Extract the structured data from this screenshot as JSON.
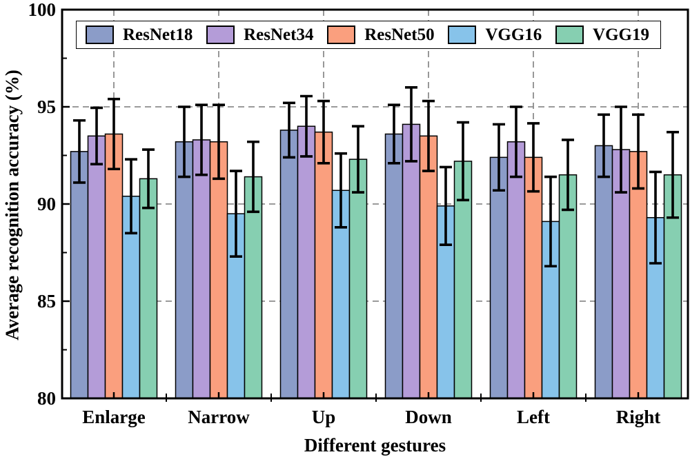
{
  "figure": {
    "y_axis_title": "Average recognition accuracy (%)",
    "x_axis_title": "Different gestures"
  },
  "chart_data": {
    "type": "bar",
    "title": "",
    "xlabel": "Different gestures",
    "ylabel": "Average recognition accuracy (%)",
    "ylim": [
      80,
      100
    ],
    "yticks_major": [
      80,
      85,
      90,
      95,
      100
    ],
    "yticks_minor": [
      82.5,
      87.5,
      92.5,
      97.5
    ],
    "grid": "dashed horizontal lines at 85/90/95; dashed vertical line at each category center",
    "legend_position": "top inside, single horizontal row, framed box",
    "error_bars": true,
    "categories": [
      "Enlarge",
      "Narrow",
      "Up",
      "Down",
      "Left",
      "Right"
    ],
    "series": [
      {
        "name": "ResNet18",
        "color": "#8B9CC8",
        "values": [
          92.7,
          93.2,
          93.8,
          93.6,
          92.4,
          93.0
        ],
        "errors": [
          1.6,
          1.8,
          1.4,
          1.5,
          1.7,
          1.6
        ]
      },
      {
        "name": "ResNet34",
        "color": "#B49CD8",
        "values": [
          93.5,
          93.3,
          94.0,
          94.1,
          93.2,
          92.8
        ],
        "errors": [
          1.45,
          1.8,
          1.55,
          1.9,
          1.8,
          2.2
        ]
      },
      {
        "name": "ResNet50",
        "color": "#FA9F7E",
        "values": [
          93.6,
          93.2,
          93.7,
          93.5,
          92.4,
          92.7
        ],
        "errors": [
          1.8,
          1.9,
          1.6,
          1.8,
          1.75,
          1.9
        ]
      },
      {
        "name": "VGG16",
        "color": "#87C3EA",
        "values": [
          90.4,
          89.5,
          90.7,
          89.9,
          89.1,
          89.3
        ],
        "errors": [
          1.9,
          2.2,
          1.9,
          2.0,
          2.3,
          2.35
        ]
      },
      {
        "name": "VGG19",
        "color": "#86CFB1",
        "values": [
          91.3,
          91.4,
          92.3,
          92.2,
          91.5,
          91.5
        ],
        "errors": [
          1.5,
          1.8,
          1.7,
          2.0,
          1.8,
          2.2
        ]
      }
    ],
    "styles": {
      "bar_edge_color": "#000000",
      "error_bar_color": "#000000",
      "gridline_color": "#8C8C8C",
      "axis_color": "#000000",
      "background": "#FFFFFF"
    }
  }
}
